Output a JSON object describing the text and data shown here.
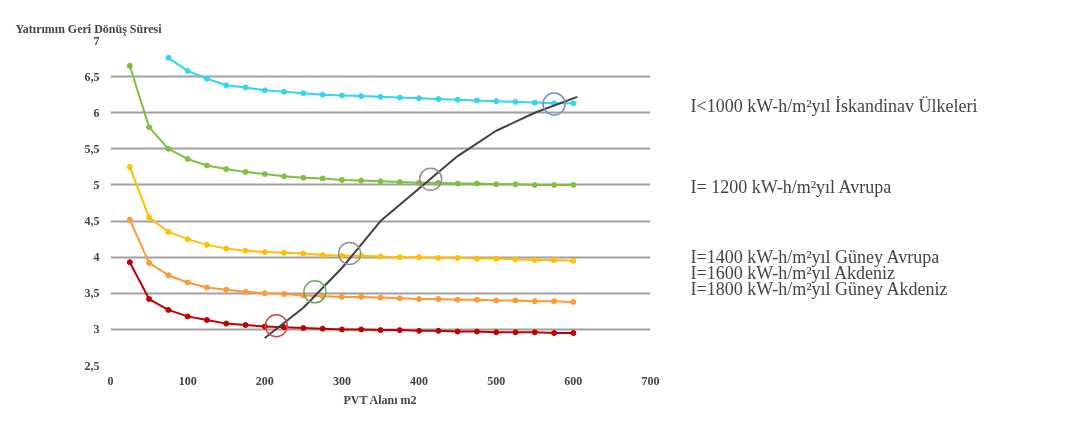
{
  "chart_data": {
    "type": "line",
    "ylabel": "Yatırımın Geri Dönüş Süresi",
    "xlabel": "PVT Alanı m2",
    "x": [
      25,
      50,
      75,
      100,
      125,
      150,
      175,
      200,
      225,
      250,
      275,
      300,
      325,
      350,
      375,
      400,
      425,
      450,
      475,
      500,
      525,
      550,
      575,
      600
    ],
    "xlim": [
      0,
      700
    ],
    "xticks": [
      0,
      100,
      200,
      300,
      400,
      500,
      600,
      700
    ],
    "ylim": [
      2.5,
      7
    ],
    "yticks": [
      {
        "value": 2.5,
        "label": "2,5"
      },
      3,
      {
        "value": 3.5,
        "label": "3,5"
      },
      4,
      {
        "value": 4.5,
        "label": "4,5"
      },
      5,
      {
        "value": 5.5,
        "label": "5,5"
      },
      6,
      {
        "value": 6.5,
        "label": "6,5"
      },
      7
    ],
    "grid": "y",
    "marker": "circle",
    "series": [
      {
        "color": "#33d6ee",
        "values": [
          null,
          null,
          6.76,
          6.58,
          6.47,
          6.38,
          6.35,
          6.31,
          6.29,
          6.27,
          6.25,
          6.24,
          6.23,
          6.22,
          6.21,
          6.2,
          6.19,
          6.18,
          6.17,
          6.16,
          6.15,
          6.14,
          6.13,
          6.13
        ]
      },
      {
        "color": "#80c040",
        "values": [
          6.65,
          5.8,
          5.5,
          5.36,
          5.27,
          5.22,
          5.18,
          5.15,
          5.12,
          5.1,
          5.09,
          5.07,
          5.06,
          5.05,
          5.04,
          5.03,
          5.03,
          5.02,
          5.02,
          5.01,
          5.01,
          5.0,
          5.0,
          5.0
        ]
      },
      {
        "color": "#ffc000",
        "values": [
          5.25,
          4.55,
          4.35,
          4.25,
          4.17,
          4.12,
          4.09,
          4.07,
          4.06,
          4.05,
          4.03,
          4.02,
          4.02,
          4.01,
          4.0,
          4.0,
          3.99,
          3.99,
          3.98,
          3.98,
          3.97,
          3.96,
          3.96,
          3.95
        ]
      },
      {
        "color": "#ff9933",
        "values": [
          4.52,
          3.92,
          3.75,
          3.65,
          3.58,
          3.55,
          3.52,
          3.5,
          3.49,
          3.47,
          3.46,
          3.45,
          3.45,
          3.44,
          3.43,
          3.42,
          3.42,
          3.41,
          3.41,
          3.4,
          3.4,
          3.39,
          3.39,
          3.38
        ]
      },
      {
        "color": "#c00000",
        "values": [
          3.93,
          3.42,
          3.27,
          3.18,
          3.13,
          3.08,
          3.06,
          3.04,
          3.03,
          3.02,
          3.01,
          3.0,
          3.0,
          2.99,
          2.99,
          2.98,
          2.98,
          2.97,
          2.97,
          2.96,
          2.96,
          2.96,
          2.95,
          2.95
        ]
      },
      {
        "color": "#404040",
        "marker": "none",
        "x": [
          200,
          250,
          300,
          350,
          400,
          450,
          500,
          550,
          605
        ],
        "values": [
          2.88,
          3.3,
          3.85,
          4.5,
          4.95,
          5.4,
          5.75,
          6.0,
          6.22
        ]
      },
      {
        "type": "scatter",
        "marker": "circle",
        "x": [
          215,
          265,
          310,
          415,
          575
        ],
        "values": [
          3.05,
          3.52,
          4.05,
          5.08,
          6.12
        ],
        "colors": [
          "#d04848",
          "#70a860",
          "#909090",
          "#909090",
          "#7090c8"
        ]
      }
    ],
    "annotations": [
      "I<1000 kW-h/m²yıl İskandinav Ülkeleri",
      "I= 1200 kW-h/m²yıl  Avrupa",
      "I=1400 kW-h/m²yıl Güney Avrupa",
      "I=1600 kW-h/m²yıl Akdeniz",
      "I=1800 kW-h/m²yıl Güney Akdeniz"
    ]
  }
}
